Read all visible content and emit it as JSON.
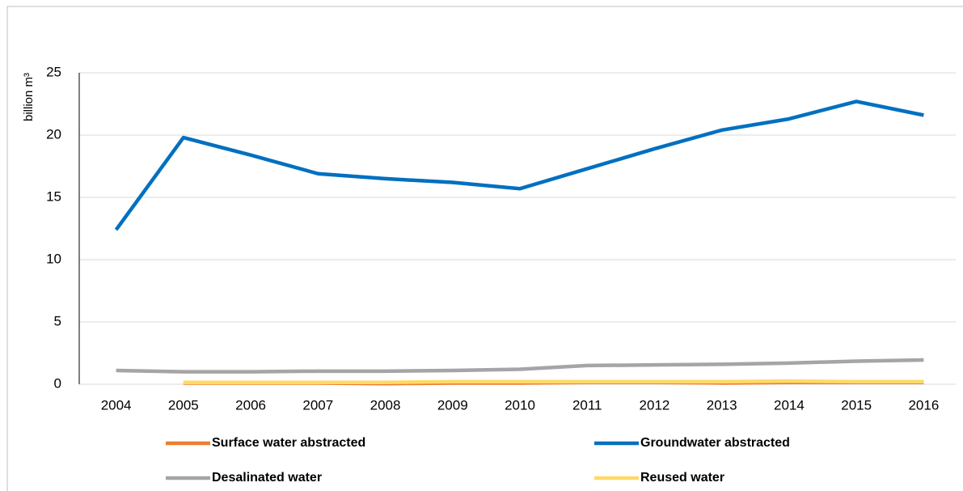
{
  "chart_data": {
    "type": "line",
    "y_label": "billion m³",
    "categories": [
      "2004",
      "2005",
      "2006",
      "2007",
      "2008",
      "2009",
      "2010",
      "2011",
      "2012",
      "2013",
      "2014",
      "2015",
      "2016"
    ],
    "ylim": [
      0,
      25
    ],
    "yticks": [
      0,
      5,
      10,
      15,
      20,
      25
    ],
    "grid": true,
    "series": [
      {
        "name": "Surface water abstracted",
        "color": "#ed7d31",
        "values": [
          null,
          0.1,
          0.1,
          0.1,
          0.05,
          0.1,
          0.1,
          0.15,
          0.15,
          0.1,
          0.15,
          0.15,
          0.15
        ]
      },
      {
        "name": "Groundwater abstracted",
        "color": "#0070c0",
        "values": [
          12.4,
          19.8,
          18.4,
          16.9,
          16.5,
          16.2,
          15.7,
          17.3,
          18.9,
          20.4,
          21.3,
          22.7,
          21.6
        ]
      },
      {
        "name": "Desalinated water",
        "color": "#a5a5a5",
        "values": [
          1.1,
          1.0,
          1.0,
          1.05,
          1.05,
          1.1,
          1.2,
          1.5,
          1.55,
          1.6,
          1.7,
          1.85,
          1.95
        ]
      },
      {
        "name": "Reused water",
        "color": "#ffd966",
        "values": [
          null,
          0.15,
          0.15,
          0.15,
          0.15,
          0.2,
          0.2,
          0.2,
          0.2,
          0.2,
          0.25,
          0.2,
          0.2
        ]
      }
    ]
  }
}
